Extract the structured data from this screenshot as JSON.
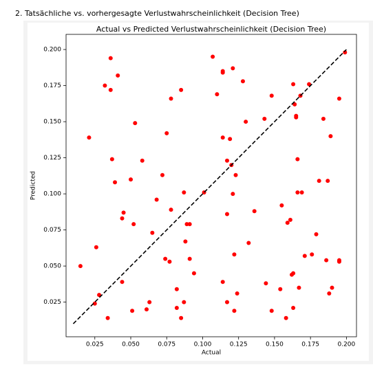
{
  "heading": "2. Tatsächliche vs. vorhergesagte Verlustwahrscheinlichkeit (Decision Tree)",
  "chart_data": {
    "type": "scatter",
    "title": "Actual vs Predicted Verlustwahrscheinlichkeit (Decision Tree)",
    "xlabel": "Actual",
    "ylabel": "Predicted",
    "color": "#ff0000",
    "x": [
      0.015,
      0.021,
      0.026,
      0.025,
      0.028,
      0.034,
      0.032,
      0.036,
      0.036,
      0.041,
      0.037,
      0.039,
      0.044,
      0.044,
      0.045,
      0.052,
      0.051,
      0.05,
      0.053,
      0.058,
      0.061,
      0.063,
      0.065,
      0.068,
      0.072,
      0.074,
      0.075,
      0.077,
      0.078,
      0.078,
      0.082,
      0.082,
      0.085,
      0.085,
      0.087,
      0.087,
      0.088,
      0.089,
      0.091,
      0.091,
      0.094,
      0.101,
      0.107,
      0.11,
      0.114,
      0.114,
      0.114,
      0.114,
      0.117,
      0.117,
      0.117,
      0.119,
      0.12,
      0.121,
      0.121,
      0.122,
      0.122,
      0.123,
      0.124,
      0.128,
      0.13,
      0.132,
      0.136,
      0.143,
      0.144,
      0.148,
      0.148,
      0.154,
      0.155,
      0.158,
      0.159,
      0.161,
      0.162,
      0.163,
      0.163,
      0.163,
      0.164,
      0.165,
      0.165,
      0.166,
      0.166,
      0.167,
      0.168,
      0.169,
      0.171,
      0.174,
      0.176,
      0.179,
      0.181,
      0.184,
      0.186,
      0.187,
      0.188,
      0.189,
      0.19,
      0.195,
      0.195,
      0.195,
      0.199
    ],
    "values": [
      0.05,
      0.139,
      0.063,
      0.024,
      0.03,
      0.014,
      0.175,
      0.194,
      0.172,
      0.182,
      0.124,
      0.108,
      0.039,
      0.083,
      0.087,
      0.079,
      0.019,
      0.11,
      0.149,
      0.123,
      0.02,
      0.025,
      0.073,
      0.096,
      0.113,
      0.055,
      0.142,
      0.053,
      0.166,
      0.089,
      0.034,
      0.021,
      0.172,
      0.014,
      0.101,
      0.025,
      0.067,
      0.079,
      0.079,
      0.055,
      0.045,
      0.101,
      0.195,
      0.169,
      0.185,
      0.184,
      0.139,
      0.039,
      0.123,
      0.086,
      0.025,
      0.138,
      0.12,
      0.1,
      0.187,
      0.019,
      0.058,
      0.113,
      0.031,
      0.178,
      0.15,
      0.066,
      0.088,
      0.152,
      0.038,
      0.168,
      0.019,
      0.034,
      0.092,
      0.014,
      0.08,
      0.082,
      0.044,
      0.176,
      0.045,
      0.021,
      0.162,
      0.153,
      0.154,
      0.124,
      0.101,
      0.035,
      0.168,
      0.101,
      0.057,
      0.176,
      0.058,
      0.072,
      0.109,
      0.152,
      0.054,
      0.109,
      0.031,
      0.14,
      0.035,
      0.166,
      0.054,
      0.053,
      0.198
    ],
    "reference_line": {
      "x": [
        0.01,
        0.2
      ],
      "y": [
        0.01,
        0.2
      ]
    },
    "xlim": [
      0.005,
      0.207
    ],
    "ylim": [
      0.001,
      0.2105
    ],
    "xticks": [
      {
        "value": 0.025,
        "label": "0.025"
      },
      {
        "value": 0.05,
        "label": "0.050"
      },
      {
        "value": 0.075,
        "label": "0.075"
      },
      {
        "value": 0.1,
        "label": "0.100"
      },
      {
        "value": 0.125,
        "label": "0.125"
      },
      {
        "value": 0.15,
        "label": "0.150"
      },
      {
        "value": 0.175,
        "label": "0.175"
      },
      {
        "value": 0.2,
        "label": "0.200"
      }
    ],
    "yticks": [
      {
        "value": 0.025,
        "label": "0.025"
      },
      {
        "value": 0.05,
        "label": "0.050"
      },
      {
        "value": 0.075,
        "label": "0.075"
      },
      {
        "value": 0.1,
        "label": "0.100"
      },
      {
        "value": 0.125,
        "label": "0.125"
      },
      {
        "value": 0.15,
        "label": "0.150"
      },
      {
        "value": 0.175,
        "label": "0.175"
      },
      {
        "value": 0.2,
        "label": "0.200"
      }
    ]
  }
}
